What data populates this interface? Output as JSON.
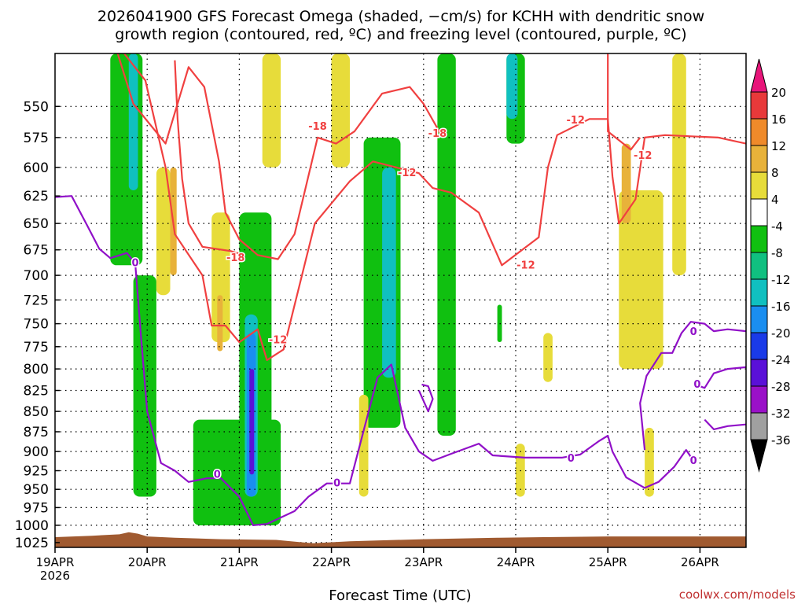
{
  "chart_data": {
    "type": "heatmap",
    "title_lines": [
      "2026041900 GFS Forecast Omega (shaded, −cm/s) for KCHH with dendritic snow",
      "growth region (contoured, red, ºC) and freezing level (contoured, purple, ºC)"
    ],
    "xlabel": "Forecast Time (UTC)",
    "ylabel": "",
    "credit": "coolwx.com/models",
    "x_ticks": [
      "19APR",
      "20APR",
      "21APR",
      "22APR",
      "23APR",
      "24APR",
      "25APR",
      "26APR"
    ],
    "x_tick_year": "2026",
    "x_range_days": [
      0,
      7.5
    ],
    "y_ticks": [
      550,
      575,
      600,
      625,
      650,
      675,
      700,
      725,
      750,
      775,
      800,
      825,
      850,
      875,
      900,
      925,
      950,
      975,
      1000,
      1025
    ],
    "y_range_hpa": [
      510,
      1032
    ],
    "y_scale": "log",
    "grid": true,
    "legend": "right colorbar",
    "colorbar": {
      "labels": [
        "20",
        "16",
        "12",
        "8",
        "4",
        "-4",
        "-8",
        "-12",
        "-16",
        "-20",
        "-24",
        "-28",
        "-32",
        "-36"
      ],
      "bins": [
        {
          "from": 16,
          "to": 20,
          "color": "#e8393a"
        },
        {
          "from": 12,
          "to": 16,
          "color": "#ef8a2a"
        },
        {
          "from": 8,
          "to": 12,
          "color": "#e8b23a"
        },
        {
          "from": 4,
          "to": 8,
          "color": "#e7dc3a"
        },
        {
          "from": -4,
          "to": 4,
          "color": "#ffffff"
        },
        {
          "from": -8,
          "to": -4,
          "color": "#10c010"
        },
        {
          "from": -12,
          "to": -8,
          "color": "#10c080"
        },
        {
          "from": -16,
          "to": -12,
          "color": "#10c0c0"
        },
        {
          "from": -20,
          "to": -16,
          "color": "#1a8ef0"
        },
        {
          "from": -24,
          "to": -20,
          "color": "#1a3ae8"
        },
        {
          "from": -28,
          "to": -24,
          "color": "#5a10d8"
        },
        {
          "from": -32,
          "to": -28,
          "color": "#9a10c8"
        },
        {
          "from": -36,
          "to": -32,
          "color": "#a0a0a0"
        }
      ],
      "top_arrow_color": "#e8157a",
      "bottom_arrow_color": "#000000"
    },
    "colors": {
      "dgz_contour": "#f04040",
      "freezing_contour": "#9010c8",
      "terrain": "#a05a30",
      "green": "#10c010",
      "teal": "#10c0c0",
      "blue": "#1a8ef0",
      "purple": "#5a10d8",
      "yellow": "#e7dc3a",
      "orange": "#e8b23a",
      "credit": "#c03030"
    },
    "contour_labels": [
      {
        "text": "-18",
        "day": 2.85,
        "p": 566
      },
      {
        "text": "-18",
        "day": 4.15,
        "p": 572
      },
      {
        "text": "-18",
        "day": 1.96,
        "p": 683
      },
      {
        "text": "-12",
        "day": 3.82,
        "p": 605
      },
      {
        "text": "-12",
        "day": 5.65,
        "p": 561
      },
      {
        "text": "-12",
        "day": 6.38,
        "p": 590
      },
      {
        "text": "-12",
        "day": 2.42,
        "p": 768
      },
      {
        "text": "-12",
        "day": 5.11,
        "p": 690
      },
      {
        "text": "0",
        "day": 0.87,
        "p": 688
      },
      {
        "text": "0",
        "day": 1.76,
        "p": 930
      },
      {
        "text": "0",
        "day": 3.06,
        "p": 942
      },
      {
        "text": "0",
        "day": 5.6,
        "p": 909
      },
      {
        "text": "0",
        "day": 6.93,
        "p": 759
      },
      {
        "text": "0",
        "day": 6.97,
        "p": 818
      },
      {
        "text": "0",
        "day": 6.93,
        "p": 912
      }
    ],
    "dgz_minus18_upper": [
      [
        0.68,
        510
      ],
      [
        0.85,
        548
      ],
      [
        1.2,
        580
      ],
      [
        1.45,
        520
      ],
      [
        1.62,
        535
      ],
      [
        1.78,
        595
      ],
      [
        1.85,
        640
      ],
      [
        2.0,
        665
      ],
      [
        2.2,
        680
      ],
      [
        2.42,
        684
      ],
      [
        2.6,
        660
      ],
      [
        2.85,
        575
      ],
      [
        3.05,
        580
      ],
      [
        3.25,
        570
      ],
      [
        3.55,
        540
      ],
      [
        3.85,
        535
      ],
      [
        4.0,
        548
      ],
      [
        4.2,
        574
      ]
    ],
    "dgz_minus18_inner": [
      [
        1.3,
        515
      ],
      [
        1.33,
        560
      ],
      [
        1.38,
        610
      ],
      [
        1.45,
        650
      ],
      [
        1.6,
        672
      ],
      [
        1.9,
        676
      ],
      [
        2.05,
        680
      ]
    ],
    "dgz_minus12": [
      [
        0.75,
        510
      ],
      [
        0.98,
        530
      ],
      [
        1.2,
        600
      ],
      [
        1.3,
        660
      ],
      [
        1.6,
        700
      ],
      [
        1.7,
        752
      ],
      [
        1.85,
        752
      ],
      [
        2.0,
        770
      ],
      [
        2.2,
        756
      ],
      [
        2.3,
        790
      ],
      [
        2.48,
        778
      ],
      [
        2.82,
        650
      ],
      [
        3.2,
        612
      ],
      [
        3.45,
        595
      ],
      [
        3.95,
        605
      ],
      [
        4.1,
        618
      ],
      [
        4.3,
        622
      ],
      [
        4.6,
        640
      ],
      [
        4.85,
        690
      ],
      [
        5.25,
        663
      ],
      [
        5.35,
        600
      ],
      [
        5.45,
        573
      ],
      [
        5.8,
        560
      ],
      [
        6.0,
        560
      ],
      [
        6.05,
        608
      ],
      [
        6.12,
        650
      ],
      [
        6.3,
        628
      ],
      [
        6.4,
        575
      ],
      [
        6.62,
        573
      ],
      [
        7.2,
        575
      ],
      [
        7.5,
        580
      ]
    ],
    "dgz_minus12_small": [
      [
        6.0,
        510
      ],
      [
        6.0,
        570
      ],
      [
        6.25,
        585
      ],
      [
        6.35,
        575
      ]
    ],
    "freezing_main": [
      [
        0.0,
        626
      ],
      [
        0.18,
        625
      ],
      [
        0.35,
        652
      ],
      [
        0.48,
        674
      ],
      [
        0.6,
        683
      ],
      [
        0.78,
        678
      ],
      [
        0.87,
        688
      ],
      [
        0.93,
        760
      ],
      [
        1.0,
        850
      ],
      [
        1.15,
        915
      ],
      [
        1.3,
        925
      ],
      [
        1.45,
        940
      ],
      [
        1.65,
        935
      ],
      [
        1.8,
        935
      ],
      [
        2.0,
        960
      ],
      [
        2.15,
        1000
      ],
      [
        2.3,
        998
      ],
      [
        2.6,
        980
      ],
      [
        2.75,
        960
      ],
      [
        2.95,
        942
      ],
      [
        3.2,
        942
      ],
      [
        3.5,
        810
      ],
      [
        3.65,
        795
      ],
      [
        3.8,
        870
      ],
      [
        3.95,
        900
      ],
      [
        4.1,
        912
      ],
      [
        4.3,
        903
      ],
      [
        4.6,
        890
      ],
      [
        4.75,
        905
      ],
      [
        5.1,
        908
      ],
      [
        5.5,
        908
      ],
      [
        5.7,
        904
      ],
      [
        5.9,
        887
      ],
      [
        6.0,
        880
      ],
      [
        6.05,
        900
      ],
      [
        6.2,
        934
      ],
      [
        6.4,
        948
      ],
      [
        6.55,
        940
      ],
      [
        6.72,
        920
      ],
      [
        6.85,
        898
      ],
      [
        6.93,
        912
      ]
    ],
    "freezing_right": [
      [
        6.4,
        898
      ],
      [
        6.35,
        840
      ],
      [
        6.42,
        808
      ],
      [
        6.58,
        782
      ],
      [
        6.7,
        782
      ],
      [
        6.8,
        760
      ],
      [
        6.9,
        748
      ],
      [
        7.05,
        750
      ],
      [
        7.15,
        758
      ],
      [
        7.3,
        756
      ],
      [
        7.5,
        758
      ]
    ],
    "freezing_right2": [
      [
        6.95,
        818
      ],
      [
        7.05,
        822
      ],
      [
        7.15,
        805
      ],
      [
        7.3,
        800
      ],
      [
        7.5,
        798
      ]
    ],
    "freezing_right3": [
      [
        7.05,
        860
      ],
      [
        7.15,
        872
      ],
      [
        7.3,
        868
      ],
      [
        7.5,
        866
      ]
    ],
    "freezing_loop": [
      [
        3.95,
        825
      ],
      [
        4.05,
        850
      ],
      [
        4.1,
        835
      ],
      [
        4.05,
        820
      ],
      [
        3.98,
        818
      ]
    ],
    "omega_patches": [
      {
        "color": "green",
        "day": [
          0.6,
          0.95
        ],
        "p": [
          510,
          690
        ]
      },
      {
        "color": "green",
        "day": [
          0.85,
          1.1
        ],
        "p": [
          700,
          960
        ]
      },
      {
        "color": "green",
        "day": [
          1.5,
          2.45
        ],
        "p": [
          860,
          1000
        ]
      },
      {
        "color": "green",
        "day": [
          2.0,
          2.35
        ],
        "p": [
          640,
          870
        ]
      },
      {
        "color": "green",
        "day": [
          3.35,
          3.75
        ],
        "p": [
          575,
          870
        ]
      },
      {
        "color": "green",
        "day": [
          4.15,
          4.35
        ],
        "p": [
          510,
          880
        ]
      },
      {
        "color": "green",
        "day": [
          4.9,
          5.1
        ],
        "p": [
          510,
          580
        ]
      },
      {
        "color": "green",
        "day": [
          4.8,
          4.85
        ],
        "p": [
          730,
          770
        ]
      },
      {
        "color": "teal",
        "day": [
          0.8,
          0.9
        ],
        "p": [
          510,
          620
        ]
      },
      {
        "color": "teal",
        "day": [
          2.06,
          2.2
        ],
        "p": [
          740,
          960
        ]
      },
      {
        "color": "teal",
        "day": [
          3.55,
          3.7
        ],
        "p": [
          600,
          810
        ]
      },
      {
        "color": "teal",
        "day": [
          4.9,
          5.02
        ],
        "p": [
          510,
          560
        ]
      },
      {
        "color": "blue",
        "day": [
          2.08,
          2.18
        ],
        "p": [
          760,
          960
        ]
      },
      {
        "color": "purple",
        "day": [
          2.11,
          2.16
        ],
        "p": [
          800,
          930
        ]
      },
      {
        "color": "yellow",
        "day": [
          1.1,
          1.25
        ],
        "p": [
          600,
          720
        ]
      },
      {
        "color": "yellow",
        "day": [
          1.7,
          1.9
        ],
        "p": [
          640,
          770
        ]
      },
      {
        "color": "yellow",
        "day": [
          2.25,
          2.45
        ],
        "p": [
          510,
          600
        ]
      },
      {
        "color": "yellow",
        "day": [
          3.0,
          3.2
        ],
        "p": [
          510,
          600
        ]
      },
      {
        "color": "yellow",
        "day": [
          3.3,
          3.4
        ],
        "p": [
          830,
          960
        ]
      },
      {
        "color": "yellow",
        "day": [
          5.3,
          5.4
        ],
        "p": [
          760,
          815
        ]
      },
      {
        "color": "yellow",
        "day": [
          6.12,
          6.6
        ],
        "p": [
          620,
          800
        ]
      },
      {
        "color": "yellow",
        "day": [
          6.7,
          6.85
        ],
        "p": [
          510,
          700
        ]
      },
      {
        "color": "yellow",
        "day": [
          5.0,
          5.1
        ],
        "p": [
          890,
          960
        ]
      },
      {
        "color": "yellow",
        "day": [
          6.4,
          6.5
        ],
        "p": [
          870,
          960
        ]
      },
      {
        "color": "orange",
        "day": [
          1.25,
          1.32
        ],
        "p": [
          600,
          700
        ]
      },
      {
        "color": "orange",
        "day": [
          1.76,
          1.82
        ],
        "p": [
          720,
          780
        ]
      },
      {
        "color": "orange",
        "day": [
          6.15,
          6.25
        ],
        "p": [
          580,
          650
        ]
      }
    ]
  }
}
